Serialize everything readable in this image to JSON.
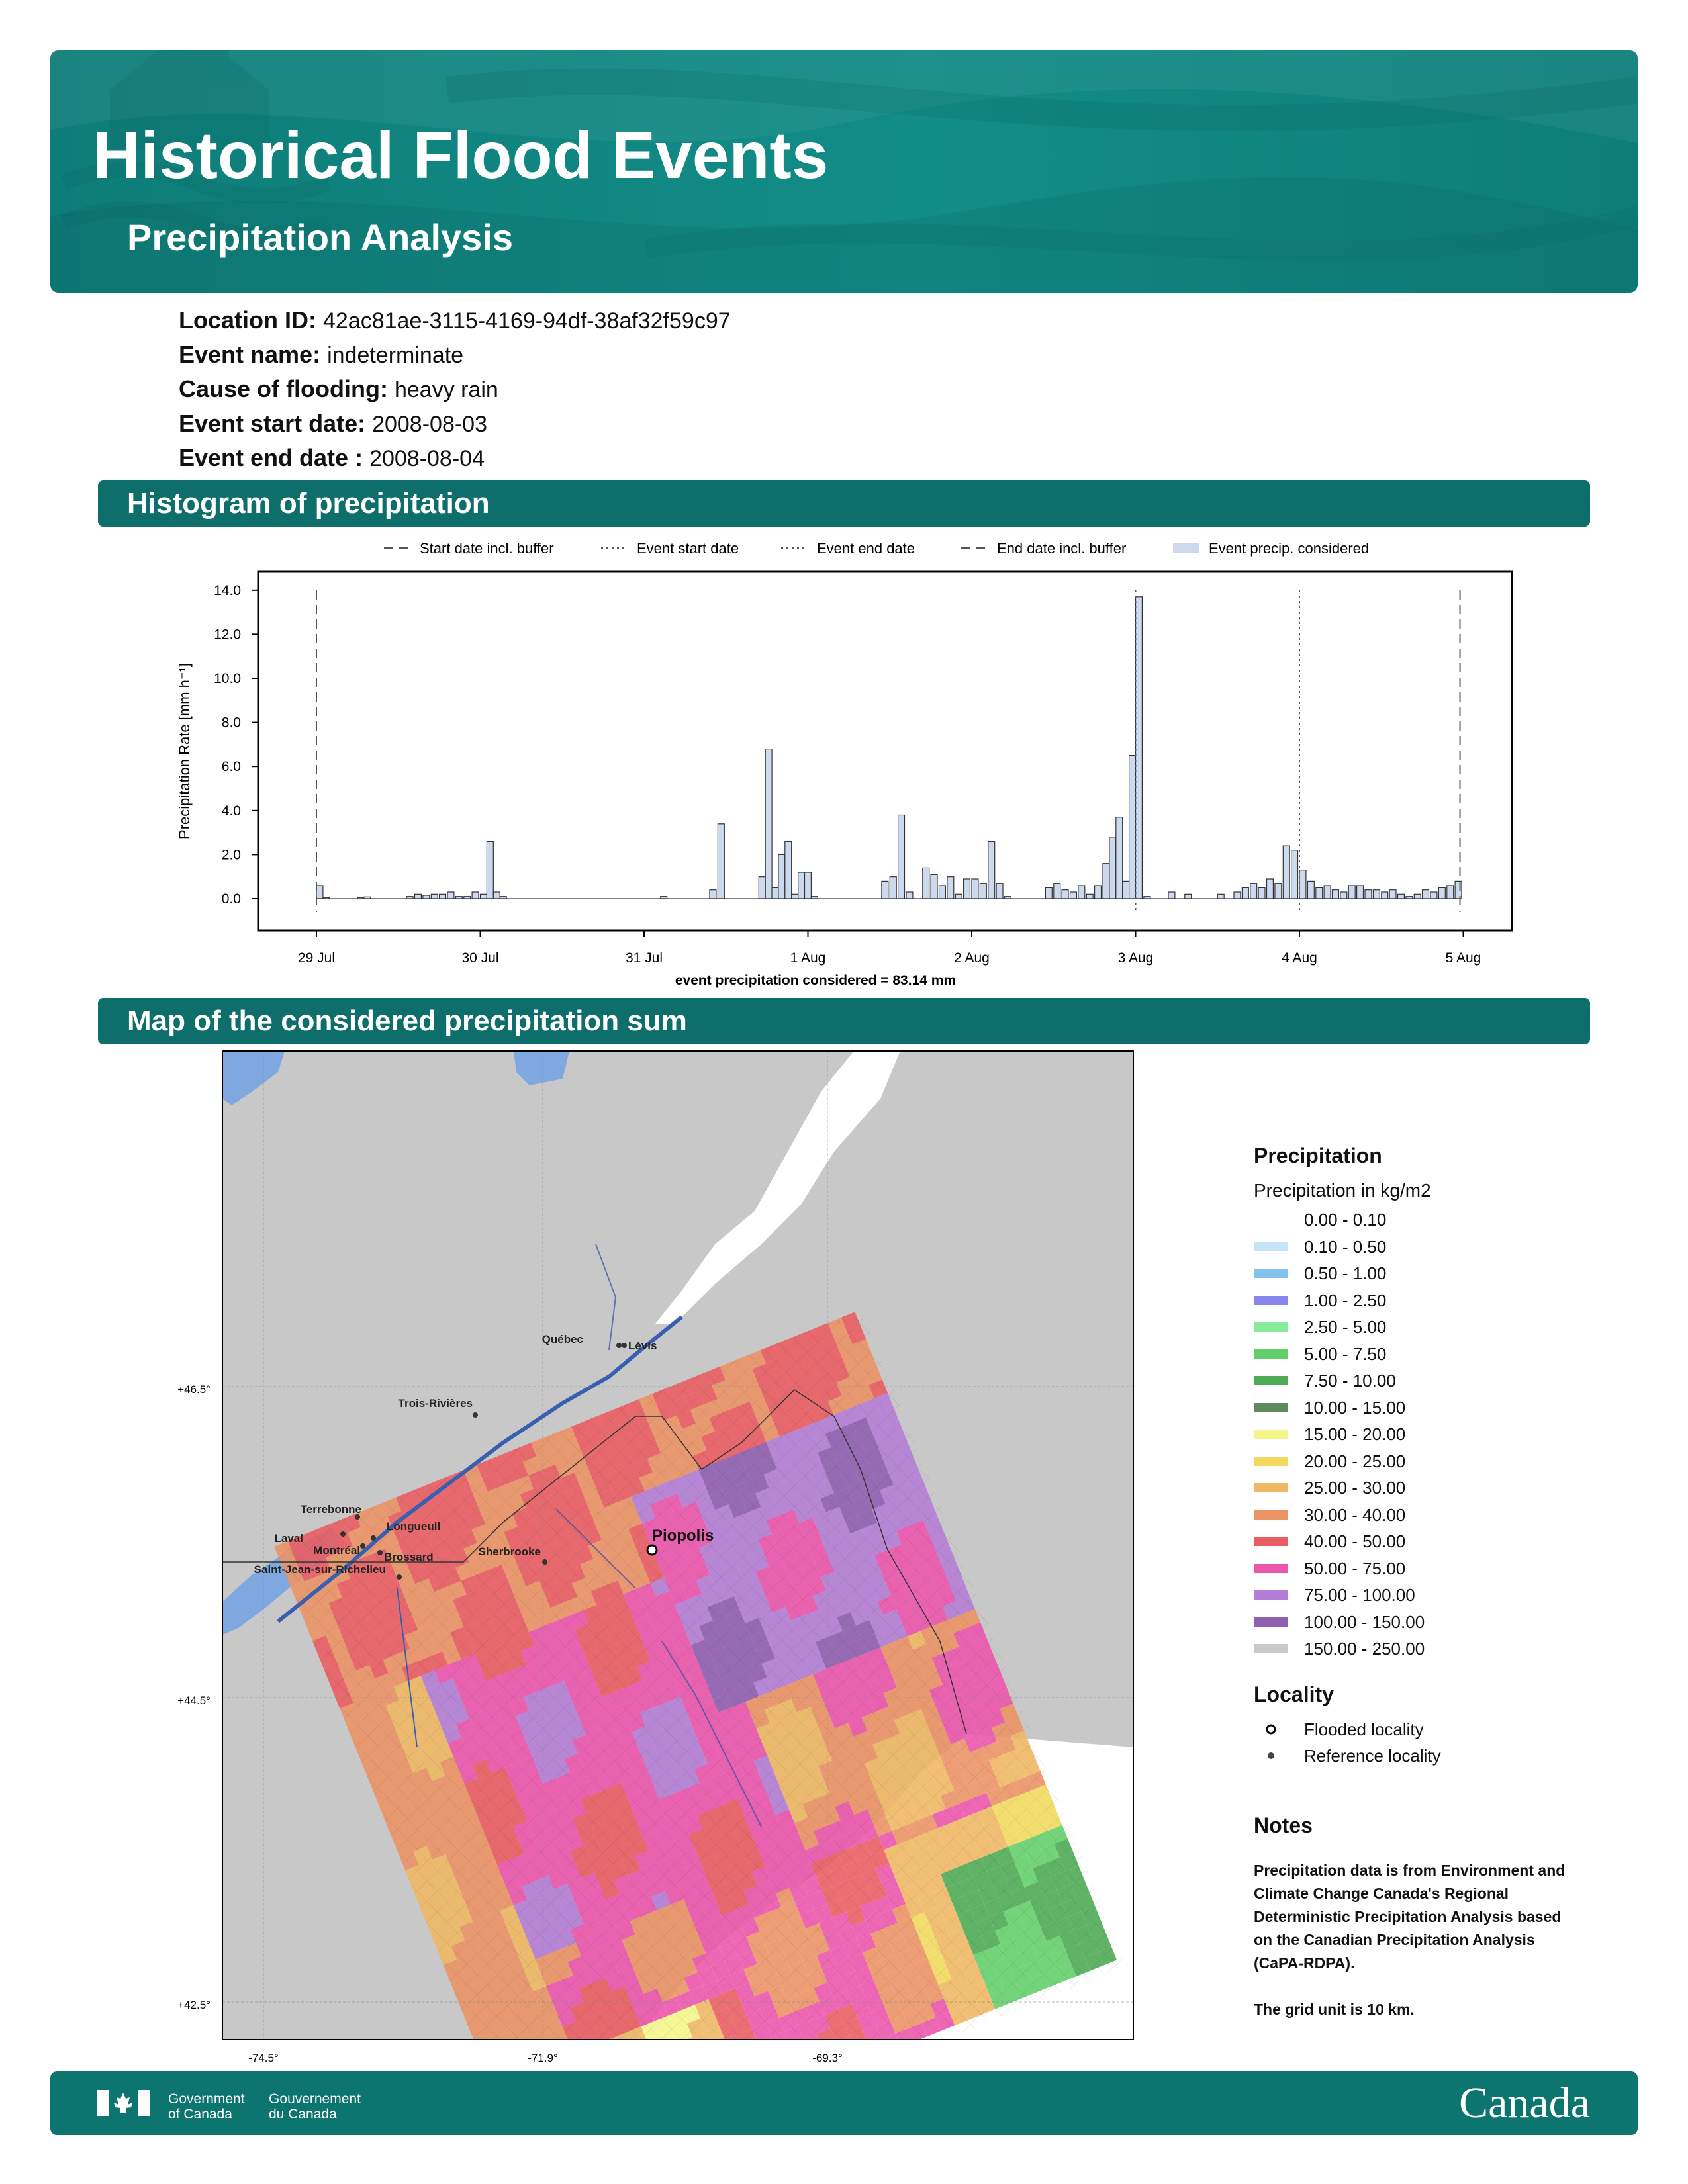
{
  "header": {
    "title": "Historical Flood Events",
    "subtitle": "Precipitation Analysis"
  },
  "meta": [
    {
      "key": "Location ID:",
      "value": "42ac81ae-3115-4169-94df-38af32f59c97"
    },
    {
      "key": "Event name:",
      "value": "indeterminate"
    },
    {
      "key": "Cause of flooding:",
      "value": "heavy rain"
    },
    {
      "key": "Event start date:",
      "value": "2008-08-03"
    },
    {
      "key": "Event end date :",
      "value": "2008-08-04"
    }
  ],
  "sections": {
    "histogram": "Histogram of precipitation",
    "map": "Map of the considered precipitation sum"
  },
  "chart_data": {
    "type": "bar",
    "ylabel": "Precipitation Rate [mm h⁻¹]",
    "xlabel": "event precipitation considered = 83.14 mm",
    "ylim": [
      0,
      14.0
    ],
    "yticks": [
      "0.0",
      "2.0",
      "4.0",
      "6.0",
      "8.0",
      "10.0",
      "12.0",
      "14.0"
    ],
    "xticks": [
      "29 Jul",
      "30 Jul",
      "31 Jul",
      "1 Aug",
      "2 Aug",
      "3 Aug",
      "4 Aug",
      "5 Aug"
    ],
    "x_range_days": [
      -0.35,
      7.3
    ],
    "legend": [
      "Start date incl. buffer",
      "Event start date",
      "Event end date",
      "End date incl. buffer",
      "Event precip. considered"
    ],
    "vlines": [
      {
        "name": "Start date incl. buffer",
        "day": 0.0
      },
      {
        "name": "Event start date",
        "day": 5.0
      },
      {
        "name": "Event end date",
        "day": 6.0
      },
      {
        "name": "End date incl. buffer",
        "day": 6.98
      }
    ],
    "bars": [
      [
        0.0,
        0.6
      ],
      [
        0.04,
        0.05
      ],
      [
        0.25,
        0.05
      ],
      [
        0.29,
        0.08
      ],
      [
        0.55,
        0.1
      ],
      [
        0.6,
        0.2
      ],
      [
        0.65,
        0.15
      ],
      [
        0.7,
        0.2
      ],
      [
        0.75,
        0.2
      ],
      [
        0.8,
        0.3
      ],
      [
        0.85,
        0.1
      ],
      [
        0.9,
        0.1
      ],
      [
        0.95,
        0.3
      ],
      [
        1.0,
        0.2
      ],
      [
        1.04,
        2.6
      ],
      [
        1.08,
        0.3
      ],
      [
        1.12,
        0.1
      ],
      [
        2.1,
        0.1
      ],
      [
        2.4,
        0.4
      ],
      [
        2.45,
        3.4
      ],
      [
        2.7,
        1.0
      ],
      [
        2.74,
        6.8
      ],
      [
        2.78,
        0.5
      ],
      [
        2.82,
        2.0
      ],
      [
        2.86,
        2.6
      ],
      [
        2.9,
        0.2
      ],
      [
        2.94,
        1.2
      ],
      [
        2.98,
        1.2
      ],
      [
        3.02,
        0.1
      ],
      [
        3.45,
        0.8
      ],
      [
        3.5,
        1.0
      ],
      [
        3.55,
        3.8
      ],
      [
        3.6,
        0.3
      ],
      [
        3.7,
        1.4
      ],
      [
        3.75,
        1.1
      ],
      [
        3.8,
        0.6
      ],
      [
        3.85,
        1.0
      ],
      [
        3.9,
        0.2
      ],
      [
        3.95,
        0.9
      ],
      [
        4.0,
        0.9
      ],
      [
        4.05,
        0.7
      ],
      [
        4.1,
        2.6
      ],
      [
        4.15,
        0.7
      ],
      [
        4.2,
        0.1
      ],
      [
        4.45,
        0.5
      ],
      [
        4.5,
        0.7
      ],
      [
        4.55,
        0.4
      ],
      [
        4.6,
        0.3
      ],
      [
        4.65,
        0.6
      ],
      [
        4.7,
        0.2
      ],
      [
        4.75,
        0.6
      ],
      [
        4.8,
        1.6
      ],
      [
        4.84,
        2.8
      ],
      [
        4.88,
        3.7
      ],
      [
        4.92,
        0.8
      ],
      [
        4.96,
        6.5
      ],
      [
        5.0,
        13.7
      ],
      [
        5.05,
        0.1
      ],
      [
        5.2,
        0.3
      ],
      [
        5.3,
        0.2
      ],
      [
        5.5,
        0.2
      ],
      [
        5.6,
        0.3
      ],
      [
        5.65,
        0.5
      ],
      [
        5.7,
        0.7
      ],
      [
        5.75,
        0.5
      ],
      [
        5.8,
        0.9
      ],
      [
        5.85,
        0.7
      ],
      [
        5.9,
        2.4
      ],
      [
        5.95,
        2.2
      ],
      [
        6.0,
        1.3
      ],
      [
        6.05,
        0.8
      ],
      [
        6.1,
        0.5
      ],
      [
        6.15,
        0.6
      ],
      [
        6.2,
        0.4
      ],
      [
        6.25,
        0.3
      ],
      [
        6.3,
        0.6
      ],
      [
        6.35,
        0.6
      ],
      [
        6.4,
        0.4
      ],
      [
        6.45,
        0.4
      ],
      [
        6.5,
        0.3
      ],
      [
        6.55,
        0.4
      ],
      [
        6.6,
        0.2
      ],
      [
        6.65,
        0.1
      ],
      [
        6.7,
        0.2
      ],
      [
        6.75,
        0.4
      ],
      [
        6.8,
        0.3
      ],
      [
        6.85,
        0.5
      ],
      [
        6.9,
        0.6
      ],
      [
        6.95,
        0.8
      ]
    ]
  },
  "map": {
    "lat_labels": [
      "+46.5°",
      "+44.5°",
      "+42.5°"
    ],
    "lon_labels": [
      "-74.5°",
      "-71.9°",
      "-69.3°"
    ],
    "cities": [
      {
        "name": "Québec",
        "x": 935,
        "y": 2033
      },
      {
        "name": "Lévis",
        "x": 943,
        "y": 2033
      },
      {
        "name": "Trois-Rivières",
        "x": 718,
        "y": 2138
      },
      {
        "name": "Terrebonne",
        "x": 540,
        "y": 2292
      },
      {
        "name": "Laval",
        "x": 518,
        "y": 2318
      },
      {
        "name": "Montréal",
        "x": 548,
        "y": 2336
      },
      {
        "name": "Longueuil",
        "x": 564,
        "y": 2324
      },
      {
        "name": "Brossard",
        "x": 574,
        "y": 2346
      },
      {
        "name": "Saint-Jean-sur-Richelieu",
        "x": 603,
        "y": 2383
      },
      {
        "name": "Sherbrooke",
        "x": 823,
        "y": 2360
      }
    ],
    "flooded_city": {
      "name": "Piopolis",
      "x": 985,
      "y": 2342
    }
  },
  "legend": {
    "title": "Precipitation",
    "subtitle": "Precipitation in kg/m2",
    "items": [
      {
        "label": "0.00 - 0.10",
        "color": "#ffffff"
      },
      {
        "label": "0.10 - 0.50",
        "color": "#c6e3f7"
      },
      {
        "label": "0.50 - 1.00",
        "color": "#84c2ee"
      },
      {
        "label": "1.00 - 2.50",
        "color": "#8686ec"
      },
      {
        "label": "2.50 - 5.00",
        "color": "#86ec9c"
      },
      {
        "label": "5.00 - 7.50",
        "color": "#64cf6a"
      },
      {
        "label": "7.50 - 10.00",
        "color": "#4fab55"
      },
      {
        "label": "10.00 - 15.00",
        "color": "#5c8a5c"
      },
      {
        "label": "15.00 - 20.00",
        "color": "#f4f58b"
      },
      {
        "label": "20.00 - 25.00",
        "color": "#f2d95e"
      },
      {
        "label": "25.00 - 30.00",
        "color": "#f0b864"
      },
      {
        "label": "30.00 - 40.00",
        "color": "#ec9466"
      },
      {
        "label": "40.00 - 50.00",
        "color": "#ea5d63"
      },
      {
        "label": "50.00 - 75.00",
        "color": "#ec57ac"
      },
      {
        "label": "75.00 - 100.00",
        "color": "#b57ed6"
      },
      {
        "label": "100.00 - 150.00",
        "color": "#9060b0"
      },
      {
        "label": "150.00 - 250.00",
        "color": "#c9c9c9"
      }
    ],
    "locality_title": "Locality",
    "locality_items": [
      "Flooded locality",
      "Reference locality"
    ]
  },
  "notes": {
    "title": "Notes",
    "lines": [
      "Precipitation data is from Environment and",
      "Climate Change Canada's Regional",
      "Deterministic Precipitation Analysis based",
      "on the Canadian Precipitation Analysis",
      "(CaPA-RDPA).",
      "",
      "The grid unit is 10 km."
    ]
  },
  "footer": {
    "gov_en_1": "Government",
    "gov_en_2": "of Canada",
    "gov_fr_1": "Gouvernement",
    "gov_fr_2": "du Canada",
    "wordmark": "Canada"
  }
}
